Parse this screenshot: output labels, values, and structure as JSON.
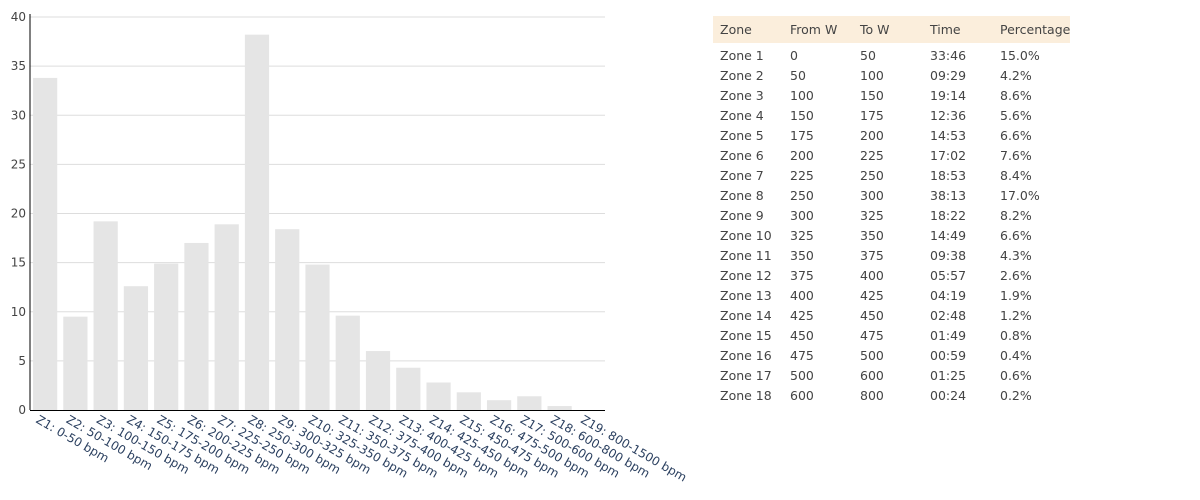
{
  "colors": {
    "bar": "#e5e5e5",
    "grid": "#dddddd",
    "axis": "#000000",
    "header_bg": "#fbeedc"
  },
  "chart_data": {
    "type": "bar",
    "categories": [
      "Z1: 0-50 bpm",
      "Z2: 50-100 bpm",
      "Z3: 100-150 bpm",
      "Z4: 150-175 bpm",
      "Z5: 175-200 bpm",
      "Z6: 200-225 bpm",
      "Z7: 225-250 bpm",
      "Z8: 250-300 bpm",
      "Z9: 300-325 bpm",
      "Z10: 325-350 bpm",
      "Z11: 350-375 bpm",
      "Z12: 375-400 bpm",
      "Z13: 400-425 bpm",
      "Z14: 425-450 bpm",
      "Z15: 450-475 bpm",
      "Z16: 475-500 bpm",
      "Z17: 500-600 bpm",
      "Z18: 600-800 bpm",
      "Z19: 800-1500 bpm"
    ],
    "values": [
      33.8,
      9.5,
      19.2,
      12.6,
      14.9,
      17.0,
      18.9,
      38.2,
      18.4,
      14.8,
      9.6,
      6.0,
      4.3,
      2.8,
      1.8,
      1.0,
      1.4,
      0.4,
      0
    ],
    "yticks": [
      0,
      5,
      10,
      15,
      20,
      25,
      30,
      35,
      40
    ],
    "ylim": [
      0,
      40
    ],
    "grid": true,
    "title": "",
    "xlabel": "",
    "ylabel": ""
  },
  "table": {
    "headers": [
      "Zone",
      "From W",
      "To W",
      "Time",
      "Percentage"
    ],
    "rows": [
      [
        "Zone 1",
        "0",
        "50",
        "33:46",
        "15.0%"
      ],
      [
        "Zone 2",
        "50",
        "100",
        "09:29",
        "4.2%"
      ],
      [
        "Zone 3",
        "100",
        "150",
        "19:14",
        "8.6%"
      ],
      [
        "Zone 4",
        "150",
        "175",
        "12:36",
        "5.6%"
      ],
      [
        "Zone 5",
        "175",
        "200",
        "14:53",
        "6.6%"
      ],
      [
        "Zone 6",
        "200",
        "225",
        "17:02",
        "7.6%"
      ],
      [
        "Zone 7",
        "225",
        "250",
        "18:53",
        "8.4%"
      ],
      [
        "Zone 8",
        "250",
        "300",
        "38:13",
        "17.0%"
      ],
      [
        "Zone 9",
        "300",
        "325",
        "18:22",
        "8.2%"
      ],
      [
        "Zone 10",
        "325",
        "350",
        "14:49",
        "6.6%"
      ],
      [
        "Zone 11",
        "350",
        "375",
        "09:38",
        "4.3%"
      ],
      [
        "Zone 12",
        "375",
        "400",
        "05:57",
        "2.6%"
      ],
      [
        "Zone 13",
        "400",
        "425",
        "04:19",
        "1.9%"
      ],
      [
        "Zone 14",
        "425",
        "450",
        "02:48",
        "1.2%"
      ],
      [
        "Zone 15",
        "450",
        "475",
        "01:49",
        "0.8%"
      ],
      [
        "Zone 16",
        "475",
        "500",
        "00:59",
        "0.4%"
      ],
      [
        "Zone 17",
        "500",
        "600",
        "01:25",
        "0.6%"
      ],
      [
        "Zone 18",
        "600",
        "800",
        "00:24",
        "0.2%"
      ]
    ]
  }
}
